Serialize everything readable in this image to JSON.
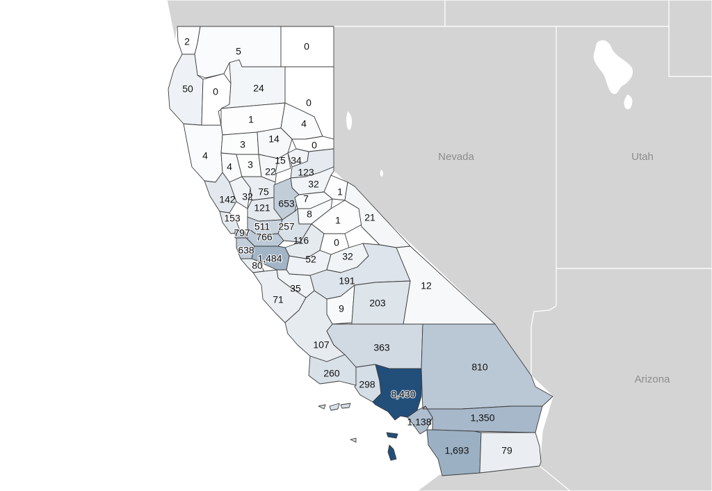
{
  "map": {
    "states": [
      {
        "id": "nevada",
        "label": "Nevada"
      },
      {
        "id": "utah",
        "label": "Utah"
      },
      {
        "id": "arizona",
        "label": "Arizona"
      }
    ],
    "colors": {
      "background": "#ffffff",
      "neighbor_land": "#d4d4d4",
      "scale_low": "#ffffff",
      "scale_high": "#224e7a",
      "label_text": "#111111",
      "state_label": "#8d8d8d"
    },
    "value_max": 8430,
    "counties": [
      {
        "id": "del-norte",
        "label": "2",
        "value": 2
      },
      {
        "id": "siskiyou",
        "label": "5",
        "value": 5
      },
      {
        "id": "modoc",
        "label": "0",
        "value": 0
      },
      {
        "id": "humboldt",
        "label": "50",
        "value": 50
      },
      {
        "id": "trinity",
        "label": "0",
        "value": 0
      },
      {
        "id": "shasta",
        "label": "24",
        "value": 24
      },
      {
        "id": "lassen",
        "label": "0",
        "value": 0
      },
      {
        "id": "tehama",
        "label": "1",
        "value": 1
      },
      {
        "id": "plumas",
        "label": "4",
        "value": 4
      },
      {
        "id": "mendocino",
        "label": "4",
        "value": 4
      },
      {
        "id": "glenn",
        "label": "3",
        "value": 3
      },
      {
        "id": "butte",
        "label": "14",
        "value": 14
      },
      {
        "id": "sierra",
        "label": "0",
        "value": 0
      },
      {
        "id": "lake",
        "label": "4",
        "value": 4
      },
      {
        "id": "colusa",
        "label": "3",
        "value": 3
      },
      {
        "id": "sutter",
        "label": "22",
        "value": 22
      },
      {
        "id": "yuba",
        "label": "15",
        "value": 15
      },
      {
        "id": "nevada-county",
        "label": "34",
        "value": 34
      },
      {
        "id": "placer",
        "label": "123",
        "value": 123
      },
      {
        "id": "el-dorado",
        "label": "32",
        "value": 32
      },
      {
        "id": "sonoma",
        "label": "142",
        "value": 142
      },
      {
        "id": "napa",
        "label": "32",
        "value": 32
      },
      {
        "id": "yolo",
        "label": "75",
        "value": 75
      },
      {
        "id": "sacramento",
        "label": "653",
        "value": 653
      },
      {
        "id": "alpine",
        "label": "1",
        "value": 1
      },
      {
        "id": "amador",
        "label": "7",
        "value": 7
      },
      {
        "id": "solano",
        "label": "121",
        "value": 121
      },
      {
        "id": "marin",
        "label": "153",
        "value": 153
      },
      {
        "id": "calaveras",
        "label": "8",
        "value": 8
      },
      {
        "id": "tuolumne",
        "label": "1",
        "value": 1
      },
      {
        "id": "mono",
        "label": "21",
        "value": 21
      },
      {
        "id": "contra-costa",
        "label": "511",
        "value": 511
      },
      {
        "id": "san-joaquin",
        "label": "257",
        "value": 257
      },
      {
        "id": "san-francisco",
        "label": "797",
        "value": 797
      },
      {
        "id": "alameda",
        "label": "766",
        "value": 766
      },
      {
        "id": "stanislaus",
        "label": "116",
        "value": 116
      },
      {
        "id": "mariposa",
        "label": "0",
        "value": 0
      },
      {
        "id": "san-mateo",
        "label": "638",
        "value": 638
      },
      {
        "id": "santa-clara",
        "label": "1,484",
        "value": 1484
      },
      {
        "id": "merced",
        "label": "52",
        "value": 52
      },
      {
        "id": "madera",
        "label": "32",
        "value": 32
      },
      {
        "id": "santa-cruz",
        "label": "80",
        "value": 80
      },
      {
        "id": "fresno",
        "label": "191",
        "value": 191
      },
      {
        "id": "inyo",
        "label": "12",
        "value": 12
      },
      {
        "id": "san-benito",
        "label": "35",
        "value": 35
      },
      {
        "id": "monterey",
        "label": "71",
        "value": 71
      },
      {
        "id": "kings",
        "label": "9",
        "value": 9
      },
      {
        "id": "tulare",
        "label": "203",
        "value": 203
      },
      {
        "id": "san-luis-obispo",
        "label": "107",
        "value": 107
      },
      {
        "id": "kern",
        "label": "363",
        "value": 363
      },
      {
        "id": "san-bernardino",
        "label": "810",
        "value": 810
      },
      {
        "id": "santa-barbara",
        "label": "260",
        "value": 260
      },
      {
        "id": "ventura",
        "label": "298",
        "value": 298
      },
      {
        "id": "los-angeles",
        "label": "8,430",
        "value": 8430
      },
      {
        "id": "orange",
        "label": "1,138",
        "value": 1138
      },
      {
        "id": "riverside",
        "label": "1,350",
        "value": 1350
      },
      {
        "id": "san-diego",
        "label": "1,693",
        "value": 1693
      },
      {
        "id": "imperial",
        "label": "79",
        "value": 79
      }
    ]
  }
}
